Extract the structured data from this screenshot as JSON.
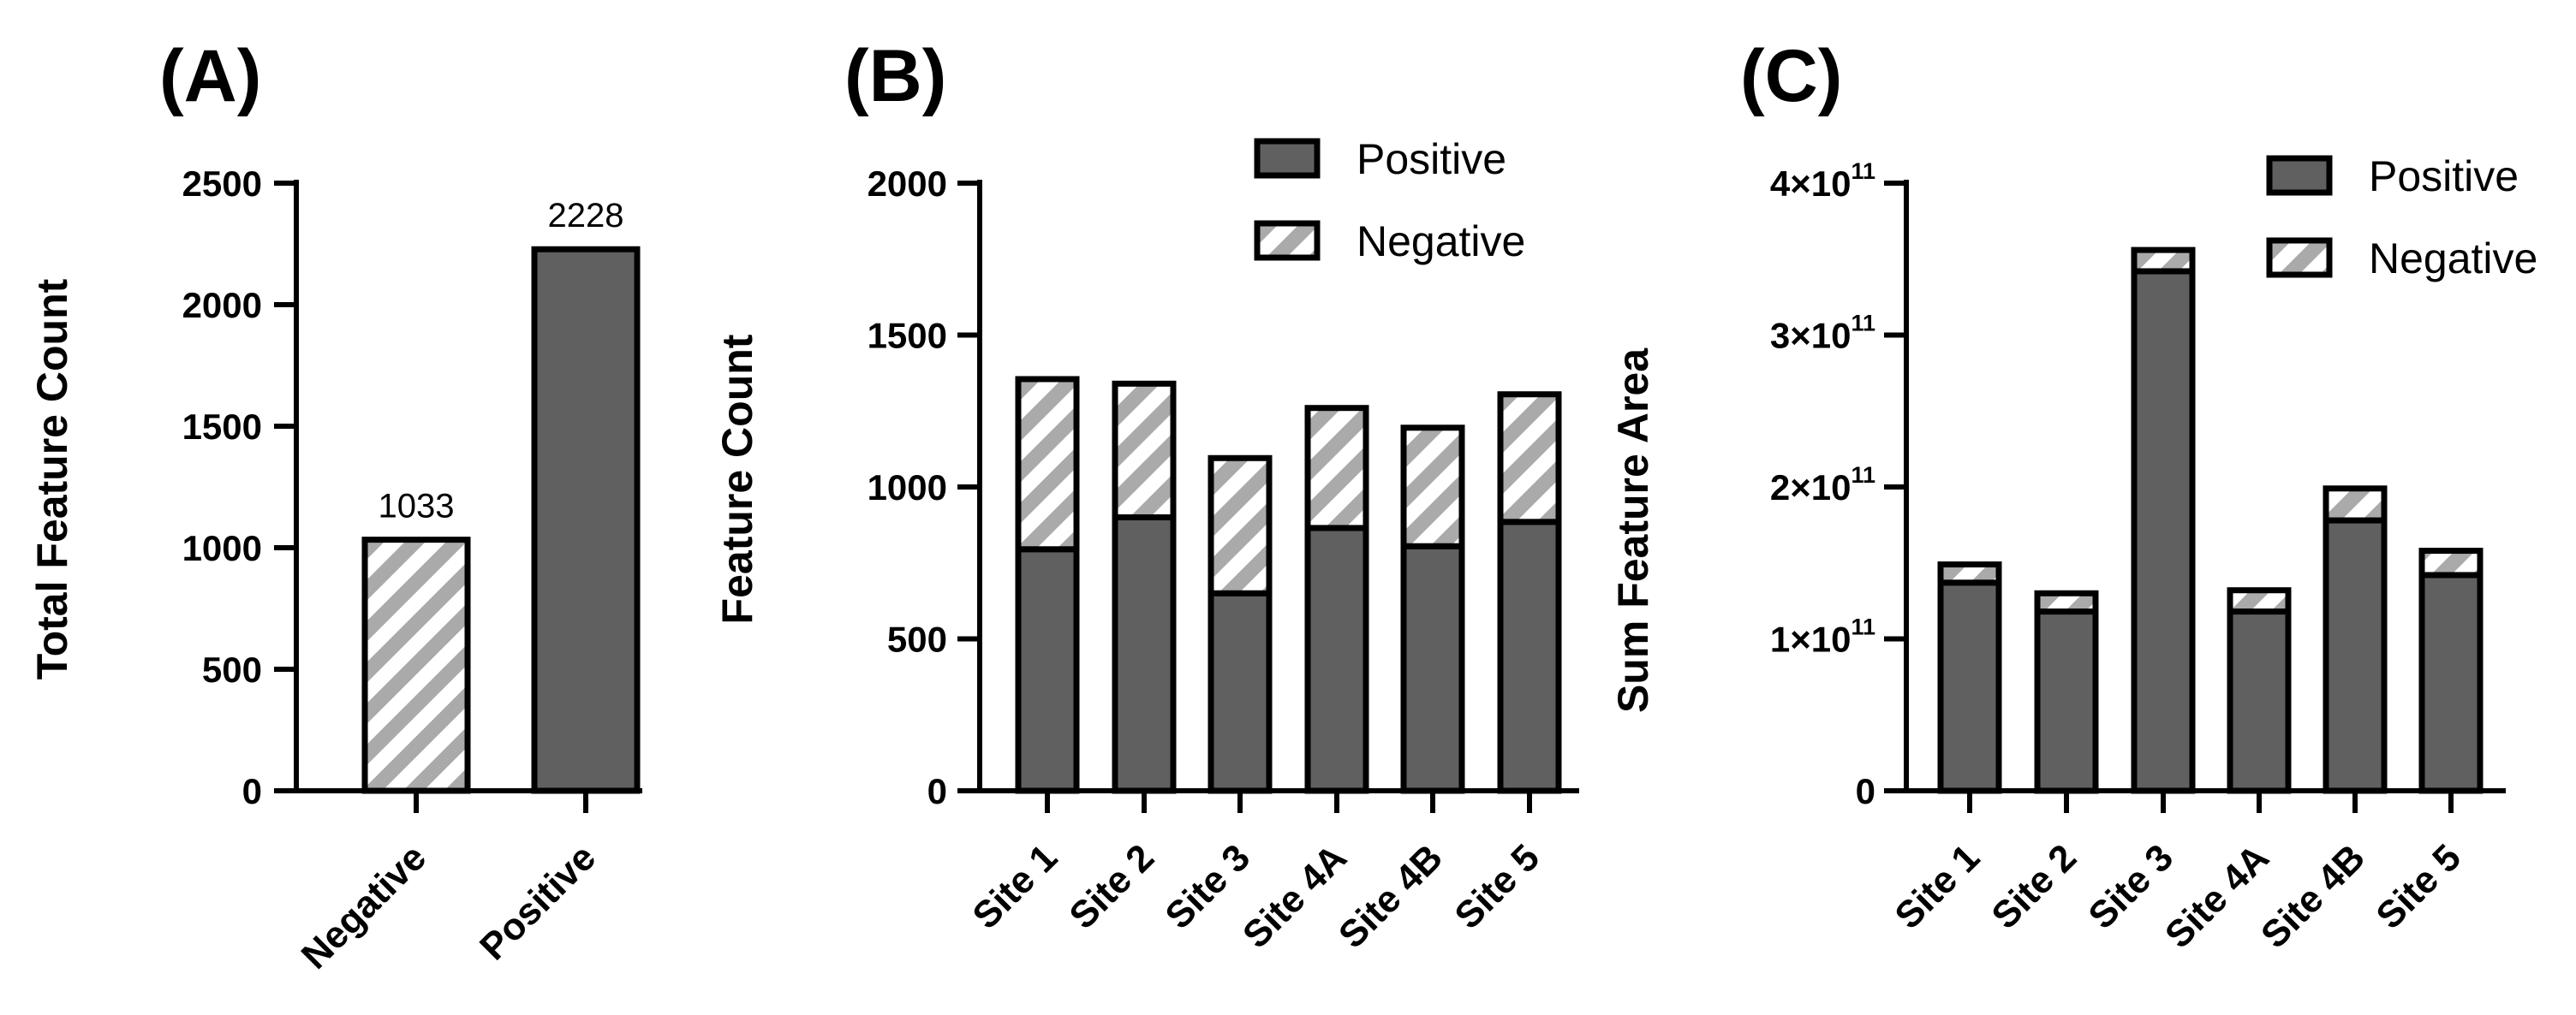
{
  "colors": {
    "positive": "#606060",
    "negative_stripe": "#aaaaaa",
    "negative_bg": "#ffffff",
    "outline": "#000000"
  },
  "chart_data": [
    {
      "panel": "(A)",
      "type": "bar",
      "title": "",
      "xlabel": "",
      "ylabel": "Total Feature Count",
      "ylim": [
        0,
        2500
      ],
      "yticks": [
        0,
        500,
        1000,
        1500,
        2000,
        2500
      ],
      "ytick_labels": [
        "0",
        "500",
        "1000",
        "1500",
        "2000",
        "2500"
      ],
      "categories": [
        "Negative",
        "Positive"
      ],
      "values": [
        1033,
        2228
      ],
      "data_labels": [
        "1033",
        "2228"
      ],
      "fills": [
        "negative",
        "positive"
      ]
    },
    {
      "panel": "(B)",
      "type": "bar",
      "stacked": true,
      "title": "",
      "xlabel": "",
      "ylabel": "Feature Count",
      "ylim": [
        0,
        2000
      ],
      "yticks": [
        0,
        500,
        1000,
        1500,
        2000
      ],
      "ytick_labels": [
        "0",
        "500",
        "1000",
        "1500",
        "2000"
      ],
      "categories": [
        "Site 1",
        "Site 2",
        "Site 3",
        "Site 4A",
        "Site 4B",
        "Site 5"
      ],
      "series": [
        {
          "name": "Positive",
          "fill": "positive",
          "values": [
            795,
            900,
            650,
            865,
            805,
            885
          ]
        },
        {
          "name": "Negative",
          "fill": "negative",
          "values": [
            560,
            440,
            445,
            395,
            390,
            420
          ]
        }
      ],
      "legend": "top-right"
    },
    {
      "panel": "(C)",
      "type": "bar",
      "stacked": true,
      "title": "",
      "xlabel": "",
      "ylabel": "Sum Feature Area",
      "ylim": [
        0,
        400000000000
      ],
      "yticks": [
        0,
        100000000000,
        200000000000,
        300000000000,
        400000000000
      ],
      "ytick_labels": [
        {
          "base": "0",
          "exp": ""
        },
        {
          "base": "1×10",
          "exp": "11"
        },
        {
          "base": "2×10",
          "exp": "11"
        },
        {
          "base": "3×10",
          "exp": "11"
        },
        {
          "base": "4×10",
          "exp": "11"
        }
      ],
      "categories": [
        "Site 1",
        "Site 2",
        "Site 3",
        "Site 4A",
        "Site 4B",
        "Site 5"
      ],
      "series": [
        {
          "name": "Positive",
          "fill": "positive",
          "values": [
            137000000000,
            118000000000,
            342000000000,
            118000000000,
            178000000000,
            142000000000
          ]
        },
        {
          "name": "Negative",
          "fill": "negative",
          "values": [
            12000000000,
            12000000000,
            14000000000,
            14000000000,
            21000000000,
            16000000000
          ]
        }
      ],
      "legend": "top-right"
    }
  ]
}
